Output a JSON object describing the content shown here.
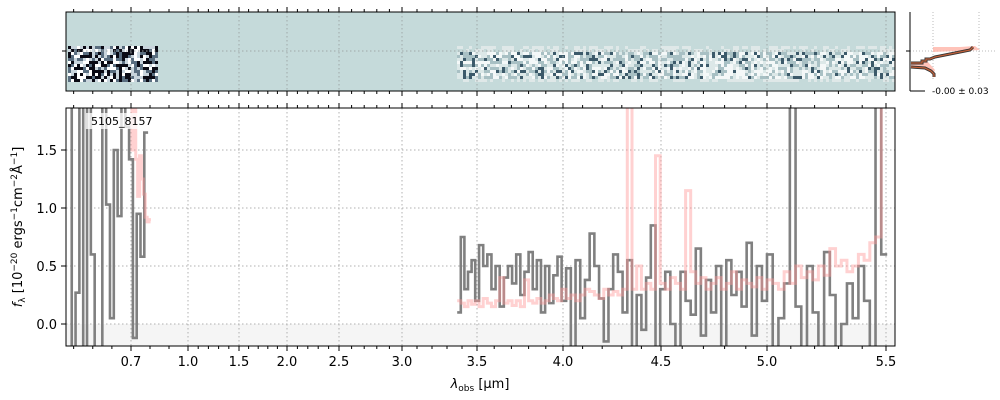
{
  "chart_data": {
    "type": "line",
    "object_id": "5105_8157",
    "xlabel": {
      "symbol": "λ",
      "sub": "obs",
      "unit": " [μm]"
    },
    "ylabel": {
      "pre": "f",
      "sub": "λ",
      "text1": " [10",
      "exp1": "−20",
      "text2": " ergs",
      "exp2": "−1",
      "text3": "cm",
      "exp3": "−2",
      "text4": "Å",
      "exp4": "−1",
      "text5": "]"
    },
    "xlim": [
      0.36,
      5.53
    ],
    "ylim": [
      -0.19,
      1.86
    ],
    "xticks": [
      0.7,
      1.0,
      1.5,
      2.0,
      2.5,
      3.0,
      3.5,
      4.0,
      4.5,
      5.0,
      5.5
    ],
    "xtick_labels": [
      "0.7",
      "1.0",
      "1.5",
      "2.0",
      "2.5",
      "3.0",
      "3.5",
      "4.0",
      "4.5",
      "5.0",
      "5.5"
    ],
    "yticks": [
      0.0,
      0.5,
      1.0,
      1.5
    ],
    "ytick_labels": [
      "0.0",
      "0.5",
      "1.0",
      "1.5"
    ],
    "grid": true,
    "series": [
      {
        "name": "data_blue",
        "color": "#808080",
        "x_start": 0.38,
        "x_step": 0.02,
        "values": [
          2.5,
          -0.5,
          0.27,
          2.5,
          -0.5,
          2.5,
          0.6,
          -0.5,
          -0.5,
          2.5,
          1.03,
          0.05,
          1.5,
          0.93,
          2.5,
          1.7,
          1.42,
          -0.12,
          0.95,
          0.58,
          1.65
        ]
      },
      {
        "name": "data_red",
        "color": "#808080",
        "x_start": 3.38,
        "x_step": 0.024,
        "values": [
          0.1,
          0.75,
          0.3,
          0.45,
          0.55,
          0.2,
          0.68,
          0.5,
          0.6,
          0.3,
          0.5,
          0.15,
          0.4,
          0.5,
          0.35,
          0.6,
          0.25,
          0.45,
          0.62,
          0.3,
          0.55,
          0.1,
          0.5,
          0.18,
          0.42,
          0.58,
          0.2,
          0.48,
          -0.25,
          0.55,
          0.05,
          0.38,
          0.78,
          0.5,
          0.22,
          -0.15,
          0.3,
          0.6,
          0.45,
          0.1,
          0.55,
          -0.3,
          0.25,
          -0.05,
          0.4,
          0.85,
          -0.3,
          0.3,
          0.45,
          0.0,
          -0.25,
          0.45,
          0.2,
          0.08,
          0.65,
          -0.1,
          0.38,
          0.1,
          0.5,
          -0.2,
          0.55,
          0.25,
          0.45,
          0.15,
          0.7,
          -0.1,
          0.5,
          0.2,
          0.6,
          -0.3,
          0.05,
          0.35,
          1.95,
          0.15,
          -0.25,
          0.5,
          0.1,
          -0.3,
          0.62,
          0.25,
          -0.3,
          0.0,
          0.35,
          0.05,
          0.5,
          0.2,
          -0.3,
          1.95,
          0.6
        ]
      },
      {
        "name": "model_blue",
        "color": "#ff9999",
        "x_start": 0.7,
        "x_step": 0.01,
        "values": [
          1.9,
          1.5,
          1.9,
          1.42,
          1.1,
          1.45,
          1.25,
          1.12,
          0.92,
          0.88,
          0.9
        ]
      },
      {
        "name": "model_red",
        "color": "#ff9999",
        "x_start": 3.38,
        "x_step": 0.024,
        "values": [
          0.2,
          0.18,
          0.15,
          0.2,
          0.17,
          0.2,
          0.15,
          0.22,
          0.18,
          0.15,
          0.2,
          0.4,
          0.18,
          0.2,
          0.16,
          0.2,
          0.15,
          0.38,
          0.2,
          0.18,
          0.22,
          0.18,
          0.2,
          0.25,
          0.22,
          0.2,
          0.3,
          0.22,
          0.25,
          0.2,
          0.25,
          0.3,
          0.28,
          0.25,
          0.22,
          0.3,
          0.25,
          0.28,
          0.25,
          0.3,
          1.9,
          0.3,
          0.5,
          0.3,
          0.35,
          0.3,
          1.45,
          0.35,
          0.3,
          0.4,
          0.35,
          0.3,
          1.15,
          0.45,
          0.35,
          0.4,
          0.3,
          0.35,
          0.4,
          0.3,
          0.35,
          0.45,
          0.3,
          0.38,
          0.35,
          0.32,
          0.4,
          0.3,
          0.38,
          0.35,
          0.3,
          0.45,
          0.35,
          0.5,
          0.4,
          0.45,
          0.38,
          0.5,
          0.42,
          0.65,
          0.5,
          0.55,
          0.45,
          0.5,
          0.6,
          0.55,
          0.7,
          0.75,
          1.9
        ]
      }
    ],
    "spectrum2d": {
      "background": "#c5dada",
      "segments": [
        [
          0.38,
          0.82
        ],
        [
          3.38,
          5.5
        ]
      ]
    },
    "side_panel": {
      "label": "-0.00 ± 0.03"
    }
  }
}
